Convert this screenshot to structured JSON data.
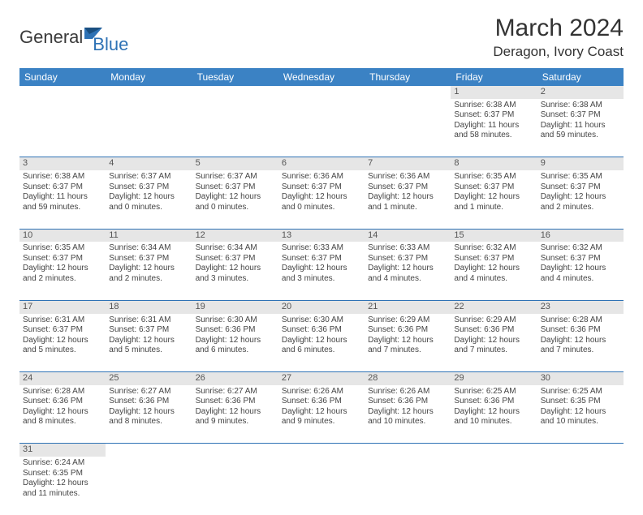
{
  "logo": {
    "text1": "General",
    "text2": "Blue"
  },
  "title": "March 2024",
  "location": "Deragon, Ivory Coast",
  "colors": {
    "header_bg": "#3b82c4",
    "header_fg": "#ffffff",
    "daynum_bg": "#e6e6e6",
    "rule": "#2e72b5",
    "text": "#444444",
    "logo_blue": "#2e72b5"
  },
  "day_headers": [
    "Sunday",
    "Monday",
    "Tuesday",
    "Wednesday",
    "Thursday",
    "Friday",
    "Saturday"
  ],
  "weeks": [
    [
      null,
      null,
      null,
      null,
      null,
      {
        "n": "1",
        "sr": "Sunrise: 6:38 AM",
        "ss": "Sunset: 6:37 PM",
        "dl": "Daylight: 11 hours and 58 minutes."
      },
      {
        "n": "2",
        "sr": "Sunrise: 6:38 AM",
        "ss": "Sunset: 6:37 PM",
        "dl": "Daylight: 11 hours and 59 minutes."
      }
    ],
    [
      {
        "n": "3",
        "sr": "Sunrise: 6:38 AM",
        "ss": "Sunset: 6:37 PM",
        "dl": "Daylight: 11 hours and 59 minutes."
      },
      {
        "n": "4",
        "sr": "Sunrise: 6:37 AM",
        "ss": "Sunset: 6:37 PM",
        "dl": "Daylight: 12 hours and 0 minutes."
      },
      {
        "n": "5",
        "sr": "Sunrise: 6:37 AM",
        "ss": "Sunset: 6:37 PM",
        "dl": "Daylight: 12 hours and 0 minutes."
      },
      {
        "n": "6",
        "sr": "Sunrise: 6:36 AM",
        "ss": "Sunset: 6:37 PM",
        "dl": "Daylight: 12 hours and 0 minutes."
      },
      {
        "n": "7",
        "sr": "Sunrise: 6:36 AM",
        "ss": "Sunset: 6:37 PM",
        "dl": "Daylight: 12 hours and 1 minute."
      },
      {
        "n": "8",
        "sr": "Sunrise: 6:35 AM",
        "ss": "Sunset: 6:37 PM",
        "dl": "Daylight: 12 hours and 1 minute."
      },
      {
        "n": "9",
        "sr": "Sunrise: 6:35 AM",
        "ss": "Sunset: 6:37 PM",
        "dl": "Daylight: 12 hours and 2 minutes."
      }
    ],
    [
      {
        "n": "10",
        "sr": "Sunrise: 6:35 AM",
        "ss": "Sunset: 6:37 PM",
        "dl": "Daylight: 12 hours and 2 minutes."
      },
      {
        "n": "11",
        "sr": "Sunrise: 6:34 AM",
        "ss": "Sunset: 6:37 PM",
        "dl": "Daylight: 12 hours and 2 minutes."
      },
      {
        "n": "12",
        "sr": "Sunrise: 6:34 AM",
        "ss": "Sunset: 6:37 PM",
        "dl": "Daylight: 12 hours and 3 minutes."
      },
      {
        "n": "13",
        "sr": "Sunrise: 6:33 AM",
        "ss": "Sunset: 6:37 PM",
        "dl": "Daylight: 12 hours and 3 minutes."
      },
      {
        "n": "14",
        "sr": "Sunrise: 6:33 AM",
        "ss": "Sunset: 6:37 PM",
        "dl": "Daylight: 12 hours and 4 minutes."
      },
      {
        "n": "15",
        "sr": "Sunrise: 6:32 AM",
        "ss": "Sunset: 6:37 PM",
        "dl": "Daylight: 12 hours and 4 minutes."
      },
      {
        "n": "16",
        "sr": "Sunrise: 6:32 AM",
        "ss": "Sunset: 6:37 PM",
        "dl": "Daylight: 12 hours and 4 minutes."
      }
    ],
    [
      {
        "n": "17",
        "sr": "Sunrise: 6:31 AM",
        "ss": "Sunset: 6:37 PM",
        "dl": "Daylight: 12 hours and 5 minutes."
      },
      {
        "n": "18",
        "sr": "Sunrise: 6:31 AM",
        "ss": "Sunset: 6:37 PM",
        "dl": "Daylight: 12 hours and 5 minutes."
      },
      {
        "n": "19",
        "sr": "Sunrise: 6:30 AM",
        "ss": "Sunset: 6:36 PM",
        "dl": "Daylight: 12 hours and 6 minutes."
      },
      {
        "n": "20",
        "sr": "Sunrise: 6:30 AM",
        "ss": "Sunset: 6:36 PM",
        "dl": "Daylight: 12 hours and 6 minutes."
      },
      {
        "n": "21",
        "sr": "Sunrise: 6:29 AM",
        "ss": "Sunset: 6:36 PM",
        "dl": "Daylight: 12 hours and 7 minutes."
      },
      {
        "n": "22",
        "sr": "Sunrise: 6:29 AM",
        "ss": "Sunset: 6:36 PM",
        "dl": "Daylight: 12 hours and 7 minutes."
      },
      {
        "n": "23",
        "sr": "Sunrise: 6:28 AM",
        "ss": "Sunset: 6:36 PM",
        "dl": "Daylight: 12 hours and 7 minutes."
      }
    ],
    [
      {
        "n": "24",
        "sr": "Sunrise: 6:28 AM",
        "ss": "Sunset: 6:36 PM",
        "dl": "Daylight: 12 hours and 8 minutes."
      },
      {
        "n": "25",
        "sr": "Sunrise: 6:27 AM",
        "ss": "Sunset: 6:36 PM",
        "dl": "Daylight: 12 hours and 8 minutes."
      },
      {
        "n": "26",
        "sr": "Sunrise: 6:27 AM",
        "ss": "Sunset: 6:36 PM",
        "dl": "Daylight: 12 hours and 9 minutes."
      },
      {
        "n": "27",
        "sr": "Sunrise: 6:26 AM",
        "ss": "Sunset: 6:36 PM",
        "dl": "Daylight: 12 hours and 9 minutes."
      },
      {
        "n": "28",
        "sr": "Sunrise: 6:26 AM",
        "ss": "Sunset: 6:36 PM",
        "dl": "Daylight: 12 hours and 10 minutes."
      },
      {
        "n": "29",
        "sr": "Sunrise: 6:25 AM",
        "ss": "Sunset: 6:36 PM",
        "dl": "Daylight: 12 hours and 10 minutes."
      },
      {
        "n": "30",
        "sr": "Sunrise: 6:25 AM",
        "ss": "Sunset: 6:35 PM",
        "dl": "Daylight: 12 hours and 10 minutes."
      }
    ],
    [
      {
        "n": "31",
        "sr": "Sunrise: 6:24 AM",
        "ss": "Sunset: 6:35 PM",
        "dl": "Daylight: 12 hours and 11 minutes."
      },
      null,
      null,
      null,
      null,
      null,
      null
    ]
  ]
}
